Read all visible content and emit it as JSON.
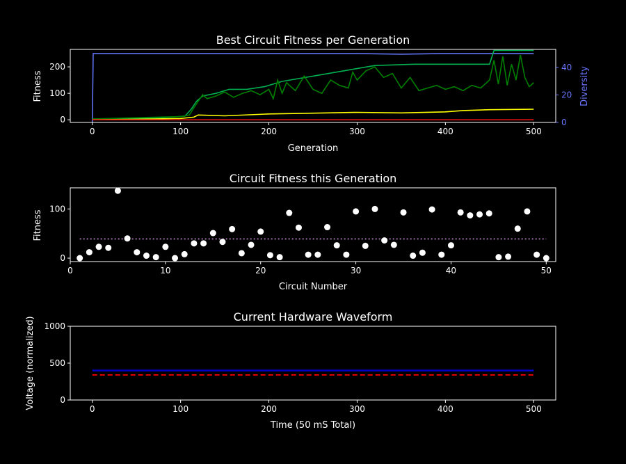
{
  "chart_data": [
    {
      "type": "line",
      "title": "Best Circuit Fitness per Generation",
      "xlabel": "Generation",
      "ylabel": "Fitness",
      "y2label": "Diversity",
      "xlim": [
        -25,
        525
      ],
      "ylim": [
        -10,
        266
      ],
      "y2lim": [
        0,
        53
      ],
      "xticks": [
        0,
        100,
        200,
        300,
        400,
        500
      ],
      "yticks": [
        0,
        100,
        200
      ],
      "y2ticks": [
        0,
        20,
        40
      ],
      "colors": {
        "diversity": "#6070f0",
        "best": "#00b050",
        "current": "#008000",
        "mean": "#ffff00",
        "worst": "#e01010",
        "axis2": "#6a74ff"
      },
      "series": [
        {
          "key": "diversity",
          "axis": "y2",
          "x": [
            0,
            1,
            10,
            50,
            100,
            150,
            200,
            250,
            300,
            350,
            400,
            450,
            500
          ],
          "values": [
            0,
            50,
            50,
            50,
            50,
            50,
            50,
            50,
            50,
            49.5,
            50,
            50,
            50
          ]
        },
        {
          "key": "best",
          "axis": "y",
          "x": [
            0,
            40,
            80,
            105,
            112,
            118,
            125,
            140,
            155,
            175,
            195,
            215,
            250,
            285,
            320,
            365,
            400,
            440,
            450,
            455,
            500
          ],
          "values": [
            3,
            5,
            8,
            14,
            40,
            70,
            90,
            100,
            115,
            115,
            125,
            145,
            165,
            185,
            205,
            210,
            210,
            210,
            210,
            262,
            262
          ]
        },
        {
          "key": "current",
          "axis": "y",
          "x": [
            0,
            50,
            100,
            110,
            115,
            120,
            125,
            130,
            140,
            150,
            160,
            170,
            180,
            190,
            200,
            205,
            210,
            215,
            220,
            230,
            240,
            250,
            260,
            270,
            280,
            290,
            295,
            300,
            310,
            320,
            330,
            340,
            350,
            360,
            370,
            380,
            390,
            400,
            410,
            420,
            430,
            440,
            450,
            455,
            460,
            465,
            470,
            475,
            480,
            485,
            490,
            495,
            500
          ],
          "values": [
            3,
            8,
            12,
            18,
            45,
            70,
            95,
            80,
            90,
            105,
            85,
            100,
            110,
            95,
            115,
            80,
            150,
            100,
            140,
            110,
            165,
            115,
            100,
            150,
            130,
            120,
            180,
            150,
            185,
            200,
            160,
            175,
            120,
            160,
            110,
            120,
            130,
            115,
            125,
            110,
            130,
            120,
            150,
            225,
            135,
            240,
            130,
            210,
            150,
            245,
            160,
            125,
            140
          ]
        },
        {
          "key": "mean",
          "axis": "y",
          "x": [
            0,
            50,
            100,
            115,
            120,
            150,
            200,
            250,
            300,
            350,
            400,
            420,
            450,
            500
          ],
          "values": [
            0,
            2,
            5,
            10,
            18,
            15,
            22,
            25,
            28,
            26,
            30,
            35,
            38,
            40
          ]
        },
        {
          "key": "worst",
          "axis": "y",
          "x": [
            0,
            100,
            200,
            300,
            400,
            500
          ],
          "values": [
            0,
            0,
            0,
            0,
            0,
            0
          ]
        }
      ]
    },
    {
      "type": "scatter",
      "title": "Circuit Fitness this Generation",
      "xlabel": "Circuit Number",
      "ylabel": "Fitness",
      "xlim": [
        0,
        51
      ],
      "ylim": [
        -7,
        143
      ],
      "xticks": [
        0,
        10,
        20,
        30,
        40,
        50
      ],
      "yticks": [
        0,
        100
      ],
      "mean_line": {
        "y": 39,
        "x_range": [
          1,
          50
        ],
        "color": "#d89ae8"
      },
      "x": [
        1,
        2,
        3,
        4,
        5,
        6,
        7,
        8,
        9,
        10,
        11,
        12,
        13,
        14,
        15,
        16,
        17,
        18,
        19,
        20,
        21,
        22,
        23,
        24,
        25,
        26,
        27,
        28,
        29,
        30,
        31,
        32,
        33,
        34,
        35,
        36,
        37,
        38,
        39,
        40,
        41,
        42,
        43,
        44,
        45,
        46,
        47,
        48,
        49,
        50
      ],
      "values": [
        0,
        12,
        23,
        21,
        137,
        40,
        12,
        5,
        2,
        23,
        0,
        8,
        30,
        30,
        51,
        33,
        59,
        10,
        27,
        54,
        6,
        2,
        92,
        62,
        7,
        7,
        63,
        26,
        7,
        95,
        25,
        100,
        36,
        27,
        93,
        5,
        11,
        99,
        7,
        26,
        93,
        87,
        89,
        91,
        2,
        3,
        60,
        95,
        7,
        0
      ]
    },
    {
      "type": "line",
      "title": "Current Hardware Waveform",
      "xlabel": "Time (50 mS Total)",
      "ylabel": "Voltage (normalized)",
      "xlim": [
        -25,
        525
      ],
      "ylim": [
        0,
        1000
      ],
      "xticks": [
        0,
        100,
        200,
        300,
        400,
        500
      ],
      "yticks": [
        0,
        500,
        1000
      ],
      "series": [
        {
          "key": "waveform",
          "color": "#0000cc",
          "style": "solid",
          "x": [
            0,
            500
          ],
          "values": [
            400,
            400
          ]
        },
        {
          "key": "target",
          "color": "#ff0000",
          "style": "dashed",
          "x": [
            0,
            500
          ],
          "values": [
            340,
            340
          ]
        }
      ]
    }
  ]
}
